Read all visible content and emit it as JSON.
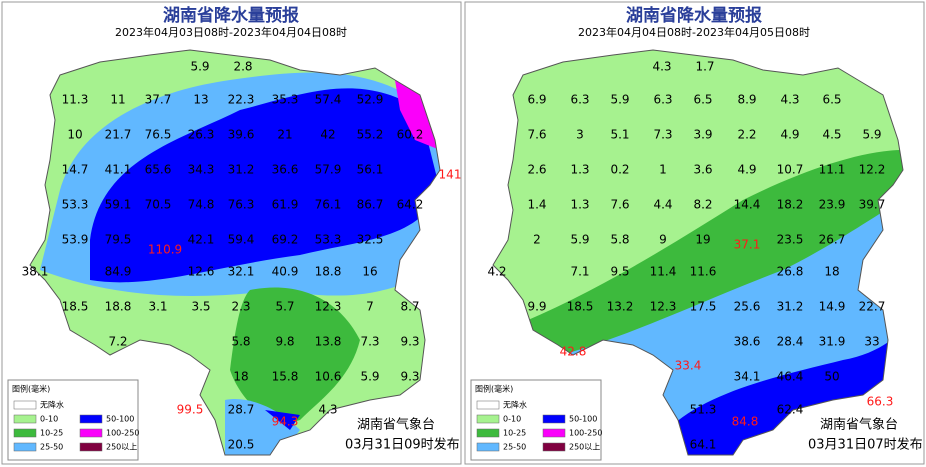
{
  "panels": [
    {
      "title": "湖南省降水量预报",
      "subtitle": "2023年04月03日08时-2023年04月04日08时",
      "stations": [
        5.9,
        2.8,
        11.3,
        11,
        37.7,
        13,
        22.3,
        35.3,
        57.4,
        52.9,
        10,
        21.7,
        76.5,
        26.3,
        39.6,
        21,
        42,
        55.2,
        60.2,
        14.7,
        41.1,
        65.6,
        34.3,
        31.2,
        36.6,
        57.9,
        56.1,
        141,
        53.3,
        59.1,
        70.5,
        74.8,
        76.3,
        61.9,
        76.1,
        86.7,
        64.2,
        53.9,
        79.5,
        110.9,
        42.1,
        59.4,
        69.2,
        53.3,
        32.5,
        38.1,
        84.9,
        12.6,
        32.1,
        40.9,
        18.8,
        16,
        18.5,
        18.8,
        3.1,
        3.5,
        2.3,
        5.7,
        12.3,
        7,
        8.7,
        7.2,
        5.8,
        9.8,
        13.8,
        7.3,
        9.3,
        18,
        15.8,
        10.6,
        5.9,
        9.3,
        99.5,
        28.7,
        94.3,
        4.3,
        20.5
      ],
      "legend": {
        "title": "图例(毫米)",
        "items": [
          "无降水",
          "0-10",
          "10-25",
          "25-50",
          "50-100",
          "100-250",
          "250以上"
        ]
      },
      "issuer": "湖南省气象台",
      "issued": "03月31日09时发布"
    },
    {
      "title": "湖南省降水量预报",
      "subtitle": "2023年04月04日08时-2023年04月05日08时",
      "stations": [
        4.3,
        1.7,
        6.9,
        6.3,
        5.9,
        6.3,
        6.5,
        8.9,
        4.3,
        6.5,
        7.6,
        3,
        5.1,
        7.3,
        3.9,
        2.2,
        4.9,
        4.5,
        5.9,
        2.6,
        1.3,
        0.2,
        1,
        3.6,
        4.9,
        10.7,
        11.1,
        12.2,
        1.4,
        1.3,
        7.6,
        4.4,
        8.2,
        14.4,
        18.2,
        23.9,
        39.7,
        2,
        5.9,
        5.8,
        9,
        19,
        37.1,
        23.5,
        26.7,
        4.2,
        7.1,
        9.5,
        11.4,
        11.6,
        26.8,
        18,
        9.9,
        18.5,
        13.2,
        12.3,
        17.5,
        25.6,
        31.2,
        14.9,
        22.7,
        42.8,
        38.6,
        28.4,
        31.9,
        33,
        33.4,
        34.1,
        46.4,
        50,
        51.3,
        62.4,
        66.3,
        84.8,
        64.1
      ],
      "legend": {
        "title": "图例(毫米)",
        "items": [
          "无降水",
          "0-10",
          "10-25",
          "25-50",
          "50-100",
          "100-250",
          "250以上"
        ]
      },
      "issuer": "湖南省气象台",
      "issued": "03月31日07时发布"
    }
  ]
}
